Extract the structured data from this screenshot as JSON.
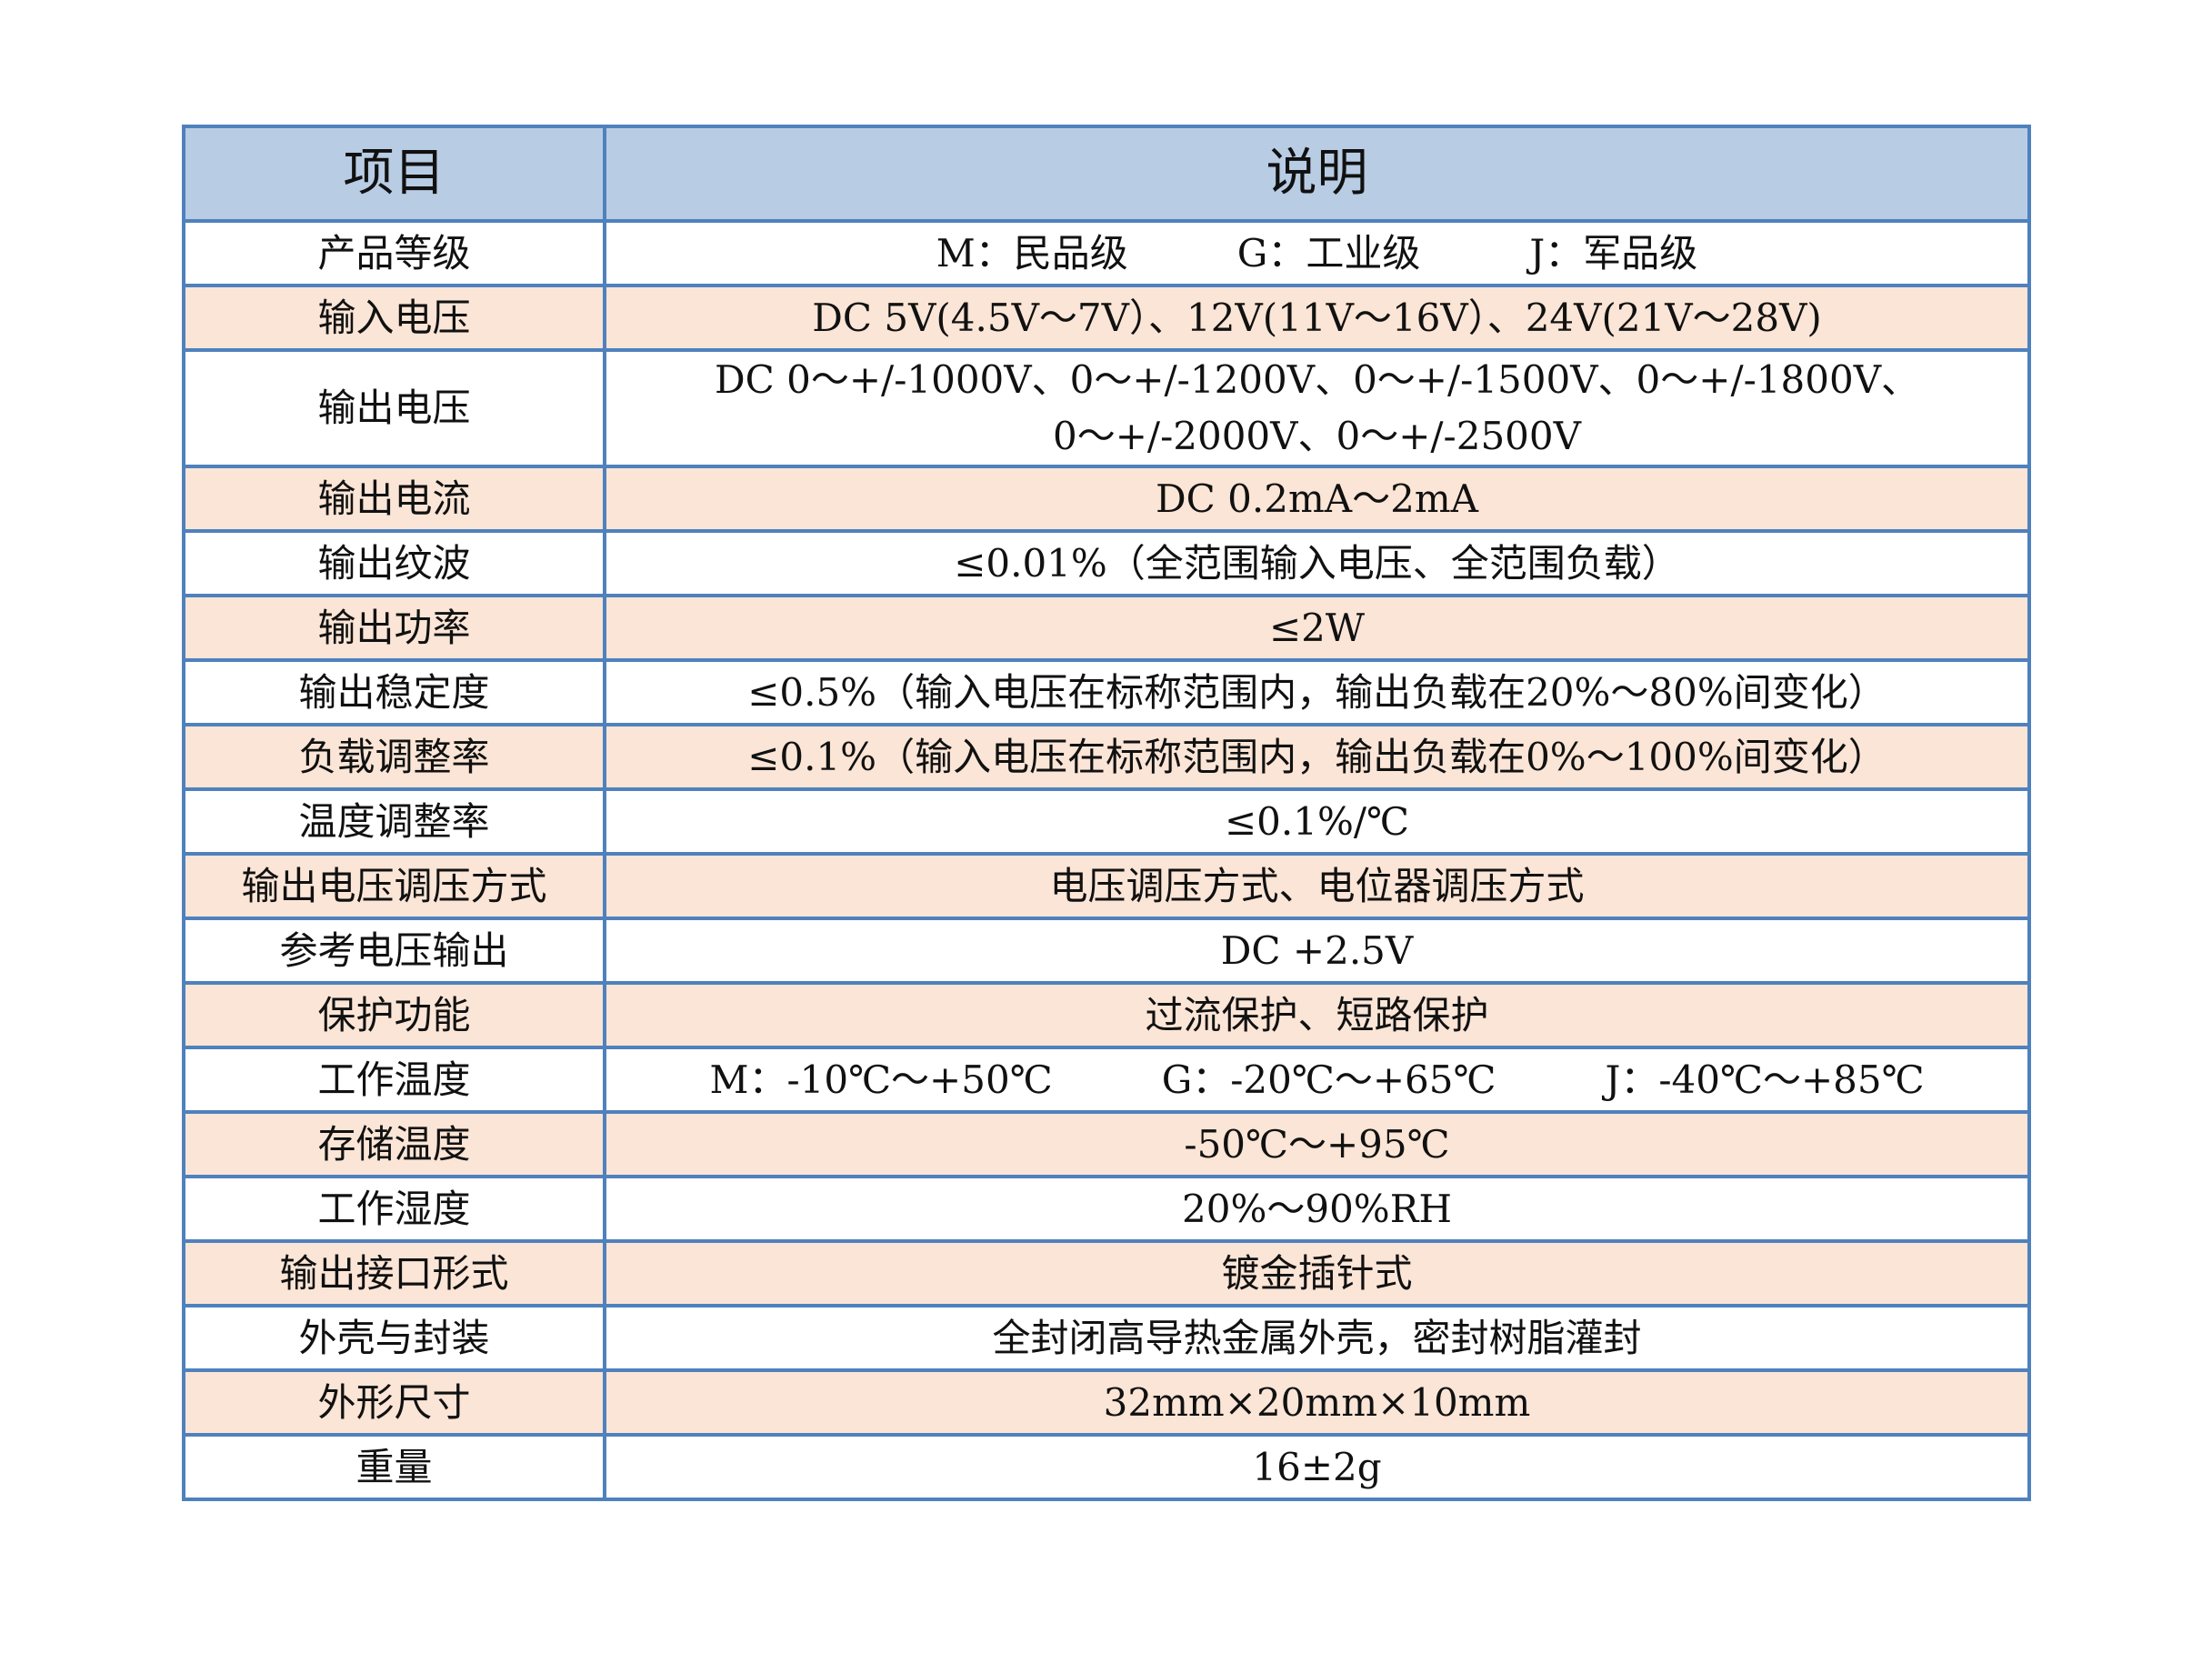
{
  "header": {
    "item": "项目",
    "description": "说明"
  },
  "rows": [
    {
      "item": "产品等级",
      "parts": [
        "M：民品级",
        "G：工业级",
        "J：军品级"
      ]
    },
    {
      "item": "输入电压",
      "value": "DC 5V(4.5V～7V）、12V(11V～16V）、24V(21V～28V)"
    },
    {
      "item": "输出电压",
      "lines": [
        "DC 0～+/-1000V、0～+/-1200V、0～+/-1500V、0～+/-1800V、",
        "0～+/-2000V、0～+/-2500V"
      ]
    },
    {
      "item": "输出电流",
      "value": "DC 0.2mA～2mA"
    },
    {
      "item": "输出纹波",
      "value": "≤0.01%（全范围输入电压、全范围负载）"
    },
    {
      "item": "输出功率",
      "value": "≤2W"
    },
    {
      "item": "输出稳定度",
      "value": "≤0.5%（输入电压在标称范围内，输出负载在20%～80%间变化）"
    },
    {
      "item": "负载调整率",
      "value": "≤0.1%（输入电压在标称范围内，输出负载在0%～100%间变化）"
    },
    {
      "item": "温度调整率",
      "value": "≤0.1%/℃"
    },
    {
      "item": "输出电压调压方式",
      "value": "电压调压方式、电位器调压方式"
    },
    {
      "item": "参考电压输出",
      "value": "DC +2.5V"
    },
    {
      "item": "保护功能",
      "value": "过流保护、短路保护"
    },
    {
      "item": "工作温度",
      "parts": [
        "M：-10℃～+50℃",
        "G：-20℃～+65℃",
        "J：-40℃～+85℃"
      ]
    },
    {
      "item": "存储温度",
      "value": "-50℃～+95℃"
    },
    {
      "item": "工作湿度",
      "value": "20%～90%RH"
    },
    {
      "item": "输出接口形式",
      "value": "镀金插针式"
    },
    {
      "item": "外壳与封装",
      "value": "全封闭高导热金属外壳，密封树脂灌封"
    },
    {
      "item": "外形尺寸",
      "value": "32mm×20mm×10mm"
    },
    {
      "item": "重量",
      "value": "16±2g"
    }
  ],
  "colors": {
    "header_bg": "#b8cce4",
    "border": "#4f81bd",
    "alt_row_bg": "#fbe5d6"
  }
}
